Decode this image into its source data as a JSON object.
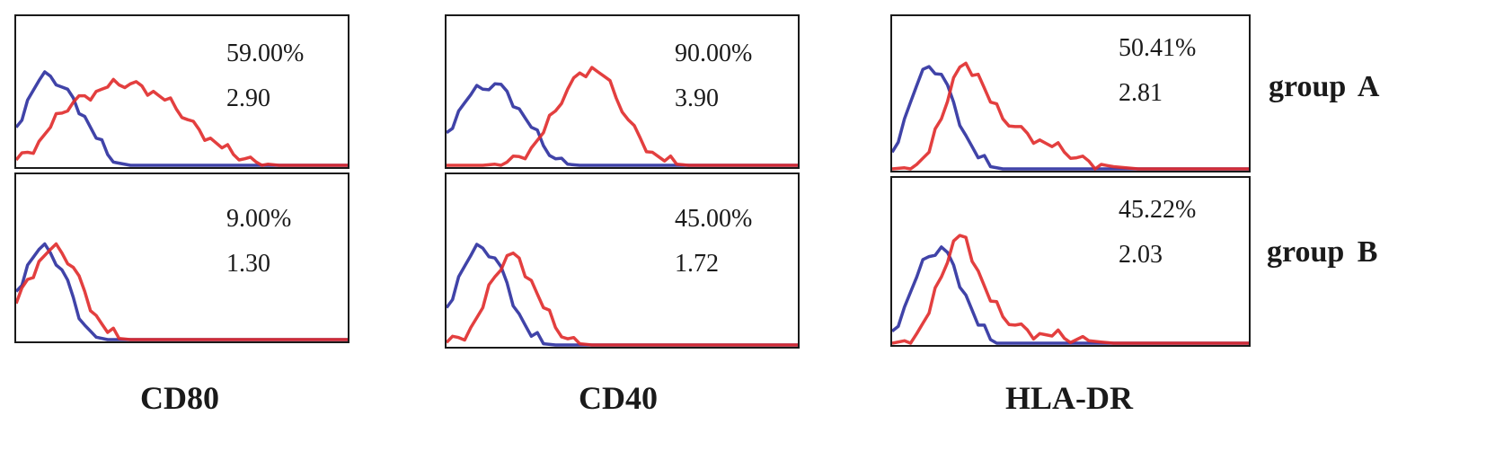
{
  "chart_data": [
    {
      "type": "area",
      "marker": "CD80",
      "group": "group A",
      "percent": "59.00%",
      "mfi": "2.90",
      "series": [
        {
          "color": "#2b2f9e",
          "values": [
            0.35,
            0.6,
            0.78,
            0.82,
            0.72,
            0.62,
            0.45,
            0.25,
            0.1,
            0.02,
            0,
            0,
            0,
            0,
            0,
            0,
            0,
            0,
            0,
            0,
            0,
            0,
            0,
            0,
            0,
            0,
            0,
            0,
            0,
            0
          ]
        },
        {
          "color": "#e02a2a",
          "values": [
            0.05,
            0.12,
            0.22,
            0.35,
            0.48,
            0.58,
            0.64,
            0.68,
            0.72,
            0.74,
            0.75,
            0.73,
            0.68,
            0.6,
            0.52,
            0.42,
            0.33,
            0.25,
            0.16,
            0.1,
            0.06,
            0.03,
            0.01,
            0,
            0,
            0,
            0,
            0,
            0,
            0
          ]
        }
      ]
    },
    {
      "type": "area",
      "marker": "CD40",
      "group": "group A",
      "percent": "90.00%",
      "mfi": "3.90",
      "series": [
        {
          "color": "#2b2f9e",
          "values": [
            0.3,
            0.5,
            0.65,
            0.7,
            0.75,
            0.68,
            0.52,
            0.35,
            0.18,
            0.06,
            0.01,
            0,
            0,
            0,
            0,
            0,
            0,
            0,
            0,
            0,
            0,
            0,
            0,
            0,
            0,
            0,
            0,
            0,
            0,
            0
          ]
        },
        {
          "color": "#e02a2a",
          "values": [
            0,
            0,
            0,
            0,
            0.01,
            0.03,
            0.08,
            0.16,
            0.3,
            0.5,
            0.7,
            0.85,
            0.9,
            0.82,
            0.62,
            0.42,
            0.25,
            0.12,
            0.04,
            0.01,
            0,
            0,
            0,
            0,
            0,
            0,
            0,
            0,
            0,
            0
          ]
        }
      ]
    },
    {
      "type": "area",
      "marker": "HLA-DR",
      "group": "group A",
      "percent": "50.41%",
      "mfi": "2.81",
      "series": [
        {
          "color": "#2b2f9e",
          "values": [
            0.15,
            0.45,
            0.75,
            0.92,
            0.85,
            0.6,
            0.3,
            0.1,
            0.02,
            0,
            0,
            0,
            0,
            0,
            0,
            0,
            0,
            0,
            0,
            0,
            0,
            0,
            0,
            0,
            0,
            0,
            0,
            0,
            0,
            0
          ]
        },
        {
          "color": "#e02a2a",
          "values": [
            0,
            0.01,
            0.04,
            0.15,
            0.45,
            0.82,
            0.95,
            0.85,
            0.6,
            0.45,
            0.38,
            0.32,
            0.26,
            0.2,
            0.15,
            0.1,
            0.07,
            0.04,
            0.02,
            0.01,
            0,
            0,
            0,
            0,
            0,
            0,
            0,
            0,
            0,
            0
          ]
        }
      ]
    },
    {
      "type": "area",
      "marker": "CD80",
      "group": "group B",
      "percent": "9.00%",
      "mfi": "1.30",
      "series": [
        {
          "color": "#2b2f9e",
          "values": [
            0.4,
            0.62,
            0.75,
            0.72,
            0.58,
            0.35,
            0.12,
            0.02,
            0,
            0,
            0,
            0,
            0,
            0,
            0,
            0,
            0,
            0,
            0,
            0,
            0,
            0,
            0,
            0,
            0,
            0,
            0,
            0,
            0,
            0
          ]
        },
        {
          "color": "#e02a2a",
          "values": [
            0.3,
            0.5,
            0.65,
            0.75,
            0.72,
            0.6,
            0.4,
            0.2,
            0.06,
            0.01,
            0,
            0,
            0,
            0,
            0,
            0,
            0,
            0,
            0,
            0,
            0,
            0,
            0,
            0,
            0,
            0,
            0,
            0,
            0,
            0
          ]
        }
      ]
    },
    {
      "type": "area",
      "marker": "CD40",
      "group": "group B",
      "percent": "45.00%",
      "mfi": "1.72",
      "series": [
        {
          "color": "#2b2f9e",
          "values": [
            0.3,
            0.55,
            0.72,
            0.78,
            0.7,
            0.5,
            0.25,
            0.07,
            0.01,
            0,
            0,
            0,
            0,
            0,
            0,
            0,
            0,
            0,
            0,
            0,
            0,
            0,
            0,
            0,
            0,
            0,
            0,
            0,
            0,
            0
          ]
        },
        {
          "color": "#e02a2a",
          "values": [
            0.02,
            0.06,
            0.14,
            0.3,
            0.55,
            0.72,
            0.7,
            0.52,
            0.3,
            0.14,
            0.05,
            0.01,
            0,
            0,
            0,
            0,
            0,
            0,
            0,
            0,
            0,
            0,
            0,
            0,
            0,
            0,
            0,
            0,
            0,
            0
          ]
        }
      ]
    },
    {
      "type": "area",
      "marker": "HLA-DR",
      "group": "group B",
      "percent": "45.22%",
      "mfi": "2.03",
      "series": [
        {
          "color": "#2b2f9e",
          "values": [
            0.1,
            0.3,
            0.55,
            0.72,
            0.8,
            0.65,
            0.4,
            0.15,
            0.03,
            0,
            0,
            0,
            0,
            0,
            0,
            0,
            0,
            0,
            0,
            0,
            0,
            0,
            0,
            0,
            0,
            0,
            0,
            0,
            0,
            0
          ]
        },
        {
          "color": "#e02a2a",
          "values": [
            0,
            0.02,
            0.08,
            0.25,
            0.55,
            0.85,
            0.88,
            0.6,
            0.35,
            0.22,
            0.15,
            0.11,
            0.08,
            0.06,
            0.04,
            0.03,
            0.02,
            0.01,
            0,
            0,
            0,
            0,
            0,
            0,
            0,
            0,
            0,
            0,
            0,
            0
          ]
        }
      ]
    }
  ],
  "markers": [
    "CD80",
    "CD40",
    "HLA-DR"
  ],
  "groups": [
    "group A",
    "group B"
  ],
  "colors": {
    "isotype": "#2b2f9e",
    "stained": "#e02a2a",
    "frame": "#1a1a1a"
  }
}
